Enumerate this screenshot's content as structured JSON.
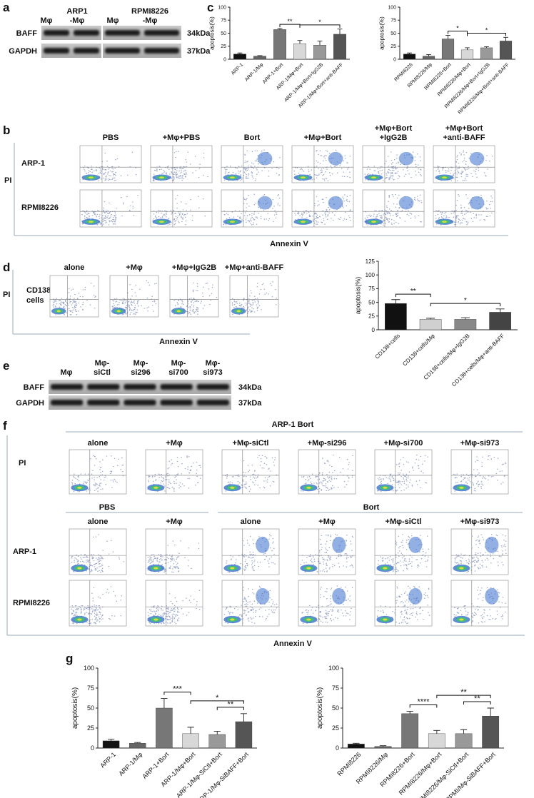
{
  "panel_a": {
    "label": "a",
    "columns": [
      [
        "Mφ"
      ],
      [
        "ARP1",
        "-Mφ"
      ],
      [
        "Mφ"
      ],
      [
        "RPMI8226",
        "-Mφ"
      ]
    ],
    "rows": [
      {
        "name": "BAFF",
        "size": "34kDa"
      },
      {
        "name": "GAPDH",
        "size": "37kDa"
      }
    ]
  },
  "panel_b": {
    "label": "b",
    "columns": [
      [
        "PBS"
      ],
      [
        "+Mφ+PBS"
      ],
      [
        "Bort"
      ],
      [
        "+Mφ+Bort"
      ],
      [
        "+Mφ+Bort",
        "+IgG2B"
      ],
      [
        "+Mφ+Bort",
        "+anti-BAFF"
      ]
    ],
    "rows": [
      "ARP-1",
      "RPMI8226"
    ],
    "y_axis": "PI",
    "x_axis": "Annexin V"
  },
  "panel_c": {
    "label": "c"
  },
  "panel_d": {
    "label": "d",
    "columns": [
      [
        "alone"
      ],
      [
        "+Mφ"
      ],
      [
        "+Mφ+IgG2B"
      ],
      [
        "+Mφ+anti-BAFF"
      ]
    ],
    "rows": [
      [
        "CD138+",
        "cells"
      ]
    ],
    "y_axis": "PI",
    "x_axis": "Annexin V"
  },
  "panel_e": {
    "label": "e",
    "columns": [
      [
        "Mφ"
      ],
      [
        "Mφ-",
        "siCtl"
      ],
      [
        "Mφ-",
        "si296"
      ],
      [
        "Mφ-",
        "si700"
      ],
      [
        "Mφ-",
        "si973"
      ]
    ],
    "rows": [
      {
        "name": "BAFF",
        "size": "34kDa"
      },
      {
        "name": "GAPDH",
        "size": "37kDa"
      }
    ]
  },
  "panel_f": {
    "label": "f",
    "title": "ARP-1  Bort",
    "top_columns": [
      [
        "alone"
      ],
      [
        "+Mφ"
      ],
      [
        "+Mφ-siCtl"
      ],
      [
        "+Mφ-si296"
      ],
      [
        "+Mφ-si700"
      ],
      [
        "+Mφ-si973"
      ]
    ],
    "groups": [
      "PBS",
      "Bort"
    ],
    "bottom_columns": [
      [
        "alone"
      ],
      [
        "+Mφ"
      ],
      [
        "alone"
      ],
      [
        "+Mφ"
      ],
      [
        "+Mφ-siCtl"
      ],
      [
        "+Mφ-si973"
      ]
    ],
    "rows": [
      "ARP-1",
      "RPMI8226"
    ],
    "y_axis": "PI",
    "x_axis": "Annexin V"
  },
  "panel_g": {
    "label": "g"
  },
  "chart_data": [
    {
      "type": "bar",
      "ylabel": "apoptosis(%)",
      "categories": [
        "ARP-1",
        "ARP-1/Mφ",
        "ARP-1+Bort",
        "ARP-1/Mφ+Bort",
        "ARP-1/Mφ+Bort+IgG2B",
        "ARP-1/Mφ+Bort+anti-BAFF"
      ],
      "values": [
        10,
        6,
        57,
        30,
        27,
        48
      ],
      "errors": [
        2,
        1,
        2,
        6,
        8,
        10
      ],
      "colors": [
        "#111111",
        "#666666",
        "#777777",
        "#d8d8d8",
        "#999999",
        "#555555"
      ],
      "ylim": [
        0,
        100
      ],
      "yticks": [
        0,
        25,
        50,
        75,
        100
      ],
      "brackets": [
        {
          "from": "ARP-1+Bort",
          "to": "ARP-1/Mφ+Bort",
          "label": "**"
        },
        {
          "from": "ARP-1/Mφ+Bort",
          "to": "ARP-1/Mφ+Bort+anti-BAFF",
          "label": "*"
        }
      ]
    },
    {
      "type": "bar",
      "ylabel": "apoptosis(%)",
      "categories": [
        "RPMI8226",
        "RPMI8226/Mφ",
        "RPMI8226+Bort",
        "RPMI8226/Mφ+Bort",
        "RPMI8226/Mφ+Bort+IgG2B",
        "RPMI8226/Mφ+Bort+anti-BAFF"
      ],
      "values": [
        10,
        6,
        39,
        18,
        22,
        35
      ],
      "errors": [
        2,
        3,
        7,
        4,
        2,
        7
      ],
      "colors": [
        "#111111",
        "#666666",
        "#777777",
        "#d8d8d8",
        "#999999",
        "#555555"
      ],
      "ylim": [
        0,
        100
      ],
      "yticks": [
        0,
        25,
        50,
        75,
        100
      ],
      "brackets": [
        {
          "from": "RPMI8226+Bort",
          "to": "RPMI8226/Mφ+Bort",
          "label": "*"
        },
        {
          "from": "RPMI8226/Mφ+Bort",
          "to": "RPMI8226/Mφ+Bort+anti-BAFF",
          "label": "*"
        }
      ]
    },
    {
      "type": "bar",
      "ylabel": "apoptosis(%)",
      "categories": [
        "CD138+cells",
        "CD138+cells/Mφ",
        "CD138+cells/Mφ+IgG2B",
        "CD138+cells/Mφ+anti-BAFF"
      ],
      "values": [
        48,
        19,
        19,
        32
      ],
      "errors": [
        7,
        2,
        3,
        6
      ],
      "colors": [
        "#111111",
        "#d0d0d0",
        "#888888",
        "#444444"
      ],
      "ylim": [
        0,
        125
      ],
      "yticks": [
        0,
        25,
        50,
        75,
        100,
        125
      ],
      "brackets": [
        {
          "from": "CD138+cells",
          "to": "CD138+cells/Mφ",
          "label": "**"
        },
        {
          "from": "CD138+cells/Mφ",
          "to": "CD138+cells/Mφ+anti-BAFF",
          "label": "*"
        }
      ]
    },
    {
      "type": "bar",
      "ylabel": "apoptosis(%)",
      "categories": [
        "ARP-1",
        "ARP-1/Mφ",
        "ARP-1+Bort",
        "ARP-1/Mφ+Bort",
        "ARP-1/Mφ-SiCtl+Bort",
        "ARP-1/Mφ-SiBAFF+Bort"
      ],
      "values": [
        9,
        6,
        50,
        18,
        17,
        33
      ],
      "errors": [
        2,
        1,
        12,
        8,
        4,
        10
      ],
      "colors": [
        "#111111",
        "#666666",
        "#777777",
        "#d8d8d8",
        "#999999",
        "#555555"
      ],
      "ylim": [
        0,
        100
      ],
      "yticks": [
        0,
        25,
        50,
        75,
        100
      ],
      "brackets": [
        {
          "from": "ARP-1+Bort",
          "to": "ARP-1/Mφ+Bort",
          "label": "***"
        },
        {
          "from": "ARP-1/Mφ-SiCtl+Bort",
          "to": "ARP-1/Mφ-SiBAFF+Bort",
          "label": "**"
        },
        {
          "from": "ARP-1/Mφ+Bort",
          "to": "ARP-1/Mφ-SiBAFF+Bort",
          "label": "*"
        }
      ]
    },
    {
      "type": "bar",
      "ylabel": "apoptosis(%)",
      "categories": [
        "RPMI8226",
        "RPMI8226/Mφ",
        "RPMI8226+Bort",
        "RPMI8226/Mφ+Bort",
        "RPMI8226/Mφ-SiCtl+Bort",
        "RPMI/Mφ-SiBAFF+Bort"
      ],
      "values": [
        5,
        2,
        43,
        18,
        18,
        40
      ],
      "errors": [
        1,
        1,
        3,
        4,
        5,
        10
      ],
      "colors": [
        "#111111",
        "#666666",
        "#777777",
        "#d8d8d8",
        "#999999",
        "#555555"
      ],
      "ylim": [
        0,
        100
      ],
      "yticks": [
        0,
        25,
        50,
        75,
        100
      ],
      "brackets": [
        {
          "from": "RPMI8226+Bort",
          "to": "RPMI8226/Mφ+Bort",
          "label": "****"
        },
        {
          "from": "RPMI8226/Mφ-SiCtl+Bort",
          "to": "RPMI/Mφ-SiBAFF+Bort",
          "label": "**"
        },
        {
          "from": "RPMI8226/Mφ+Bort",
          "to": "RPMI/Mφ-SiBAFF+Bort",
          "label": "**"
        }
      ]
    }
  ]
}
